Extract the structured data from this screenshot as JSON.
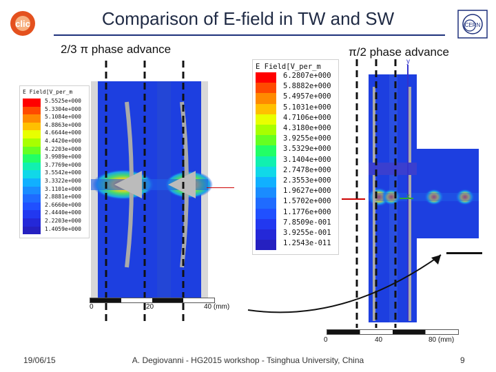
{
  "slide": {
    "title": "Comparison of E-field in TW and SW",
    "left_subtitle": "2/3 π phase advance",
    "right_subtitle": "π/2 phase advance",
    "footer_date": "19/06/15",
    "footer_center": "A. Degiovanni - HG2015 workshop - Tsinghua University, China",
    "page_number": "9"
  },
  "left_legend": {
    "header": "E Field[V_per_m",
    "values": [
      "5.5525e+000",
      "5.3304e+000",
      "5.1084e+000",
      "4.8863e+000",
      "4.6644e+000",
      "4.4420e+000",
      "4.2203e+000",
      "3.9989e+000",
      "3.7769e+000",
      "3.5542e+000",
      "3.3322e+000",
      "3.1101e+000",
      "2.8881e+000",
      "2.6660e+000",
      "2.4440e+000",
      "2.2203e+000",
      "1.4059e+000"
    ]
  },
  "right_legend": {
    "header": "E Field[V_per_m",
    "values": [
      "6.2807e+000",
      "5.8882e+000",
      "5.4957e+000",
      "5.1031e+000",
      "4.7106e+000",
      "4.3180e+000",
      "3.9255e+000",
      "3.5329e+000",
      "3.1404e+000",
      "2.7478e+000",
      "2.3553e+000",
      "1.9627e+000",
      "1.5702e+000",
      "1.1776e+000",
      "7.8509e-001",
      "3.9255e-001",
      "1.2543e-011"
    ]
  },
  "left_axis": {
    "ticks": [
      "0",
      "20",
      "40 (mm)"
    ]
  },
  "right_axis": {
    "ticks": [
      "0",
      "40",
      "80 (mm)"
    ],
    "y_label": "y",
    "x_label": "x"
  },
  "colors": {
    "accent": "#1c2f7a",
    "field_low": "#1d3fe0",
    "field_high": "#e02020",
    "marker": "#cc0000"
  },
  "icons": {
    "left_logo": "clic-logo",
    "right_logo": "cern-logo"
  }
}
